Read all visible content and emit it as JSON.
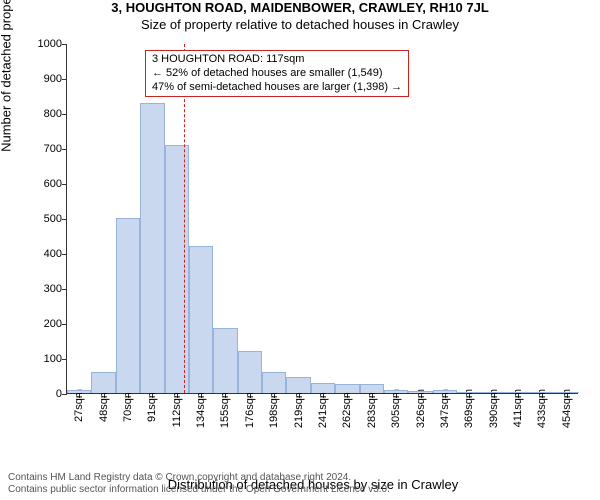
{
  "header": {
    "title": "3, HOUGHTON ROAD, MAIDENBOWER, CRAWLEY, RH10 7JL",
    "subtitle": "Size of property relative to detached houses in Crawley"
  },
  "chart": {
    "type": "histogram",
    "ylabel": "Number of detached properties",
    "xlabel": "Distribution of detached houses by size in Crawley",
    "ylim": [
      0,
      1000
    ],
    "ytick_step": 100,
    "bar_fill": "#c9d8ee",
    "bar_stroke": "#98b4da",
    "background": "#ffffff",
    "refline_color": "#cc2222",
    "refline_x_sqm": 117,
    "xtick_labels_sqm": [
      27,
      48,
      70,
      91,
      112,
      134,
      155,
      176,
      198,
      219,
      241,
      262,
      283,
      305,
      326,
      347,
      369,
      390,
      411,
      433,
      454
    ],
    "bars": [
      {
        "x_sqm": 27,
        "count": 8
      },
      {
        "x_sqm": 48,
        "count": 60
      },
      {
        "x_sqm": 70,
        "count": 500
      },
      {
        "x_sqm": 91,
        "count": 830
      },
      {
        "x_sqm": 112,
        "count": 710
      },
      {
        "x_sqm": 134,
        "count": 420
      },
      {
        "x_sqm": 155,
        "count": 185
      },
      {
        "x_sqm": 176,
        "count": 120
      },
      {
        "x_sqm": 198,
        "count": 60
      },
      {
        "x_sqm": 219,
        "count": 45
      },
      {
        "x_sqm": 241,
        "count": 30
      },
      {
        "x_sqm": 262,
        "count": 25
      },
      {
        "x_sqm": 283,
        "count": 25
      },
      {
        "x_sqm": 305,
        "count": 10
      },
      {
        "x_sqm": 326,
        "count": 5
      },
      {
        "x_sqm": 347,
        "count": 8
      },
      {
        "x_sqm": 369,
        "count": 0
      },
      {
        "x_sqm": 390,
        "count": 4
      },
      {
        "x_sqm": 411,
        "count": 0
      },
      {
        "x_sqm": 433,
        "count": 0
      },
      {
        "x_sqm": 454,
        "count": 4
      }
    ]
  },
  "callout": {
    "border_color": "#cc2222",
    "line1": "3 HOUGHTON ROAD: 117sqm",
    "line2": "← 52% of detached houses are smaller (1,549)",
    "line3": "47% of semi-detached houses are larger (1,398) →"
  },
  "footer": {
    "line1": "Contains HM Land Registry data © Crown copyright and database right 2024.",
    "line2": "Contains public sector information licensed under the Open Government Licence v3.0."
  }
}
